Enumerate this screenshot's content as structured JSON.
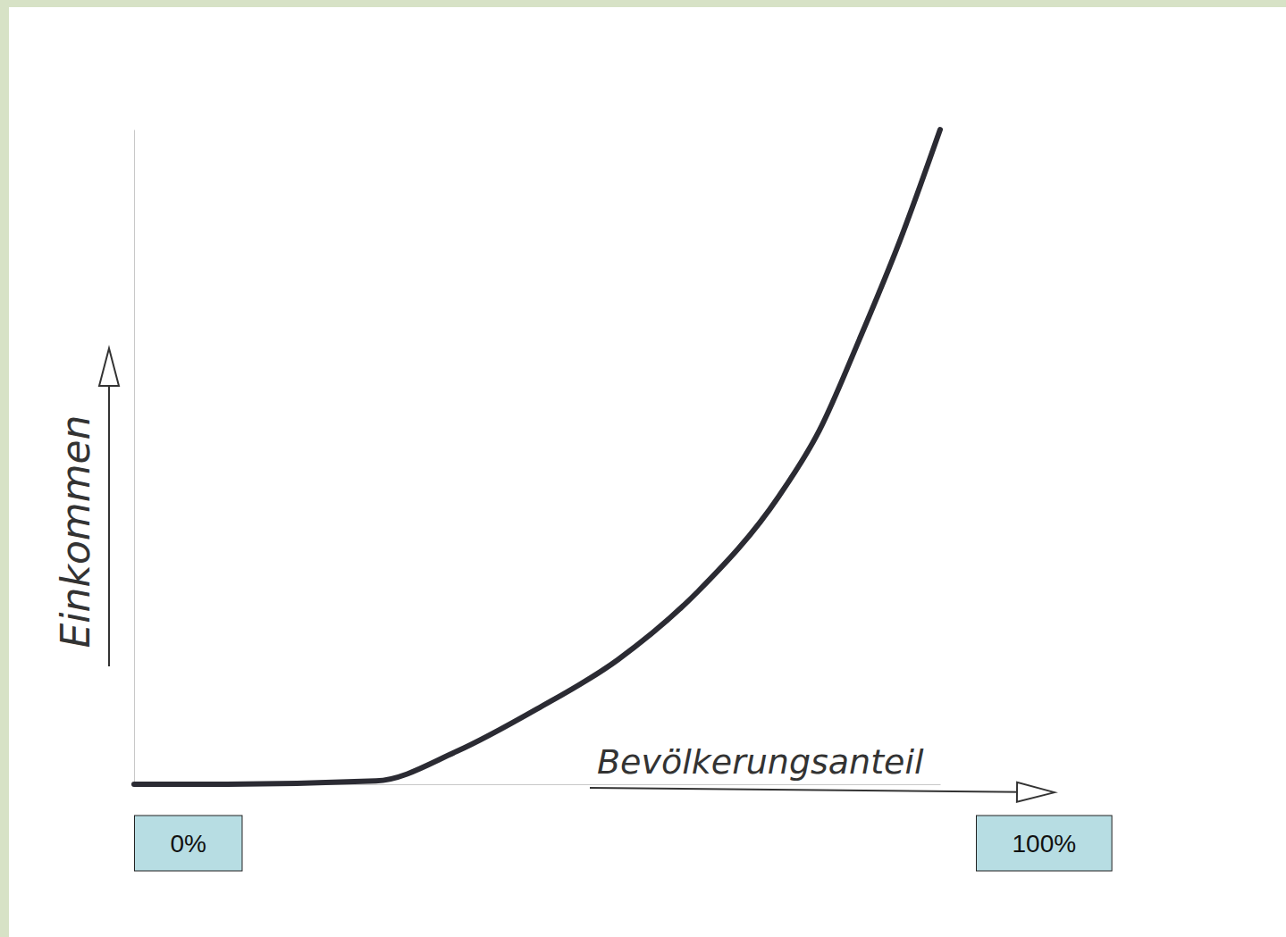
{
  "chart_data": {
    "type": "line",
    "x_label": "Bevölkerungsanteil",
    "y_label": "Einkommen",
    "x": [
      0,
      10,
      30,
      40,
      50,
      60,
      70,
      80,
      85,
      90,
      95,
      100
    ],
    "values": [
      0,
      0,
      0.5,
      5,
      11.5,
      19,
      29.5,
      44,
      54,
      68,
      83,
      100
    ],
    "xlim": [
      0,
      100
    ],
    "xticks": [
      {
        "value": 0,
        "label": "0%"
      },
      {
        "value": 100,
        "label": "100%"
      }
    ],
    "ylim": [
      0,
      100
    ],
    "tick_labels": "x",
    "color": "#2b2b33"
  }
}
